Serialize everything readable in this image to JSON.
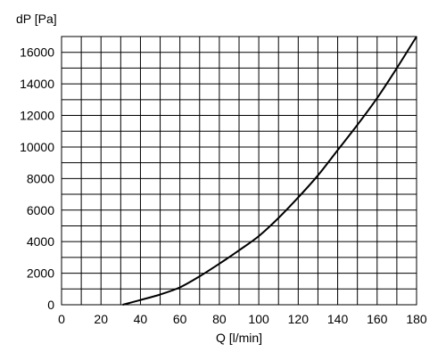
{
  "chart_data": {
    "type": "line",
    "title": "",
    "xlabel": "Q [l/min]",
    "ylabel": "dP [Pa]",
    "xlim": [
      0,
      180
    ],
    "ylim": [
      0,
      17000
    ],
    "x_ticks": [
      0,
      20,
      40,
      60,
      80,
      100,
      120,
      140,
      160,
      180
    ],
    "y_ticks": [
      0,
      2000,
      4000,
      6000,
      8000,
      10000,
      12000,
      14000,
      16000
    ],
    "x_tick_labels": [
      "0",
      "20",
      "40",
      "60",
      "80",
      "100",
      "120",
      "140",
      "160",
      "180"
    ],
    "y_tick_labels": [
      "0",
      "2000",
      "4000",
      "6000",
      "8000",
      "10000",
      "12000",
      "14000",
      "16000"
    ],
    "x_minor_step": 10,
    "y_minor_step": 1000,
    "grid": true,
    "legend": "none",
    "line_color": "#000000",
    "series": [
      {
        "x": [
          31,
          40,
          50,
          60,
          70,
          80,
          90,
          100,
          110,
          120,
          130,
          140,
          150,
          160,
          170,
          180
        ],
        "y": [
          0,
          300,
          650,
          1100,
          1800,
          2600,
          3450,
          4350,
          5500,
          6800,
          8200,
          9800,
          11400,
          13100,
          15000,
          17000
        ]
      }
    ]
  }
}
